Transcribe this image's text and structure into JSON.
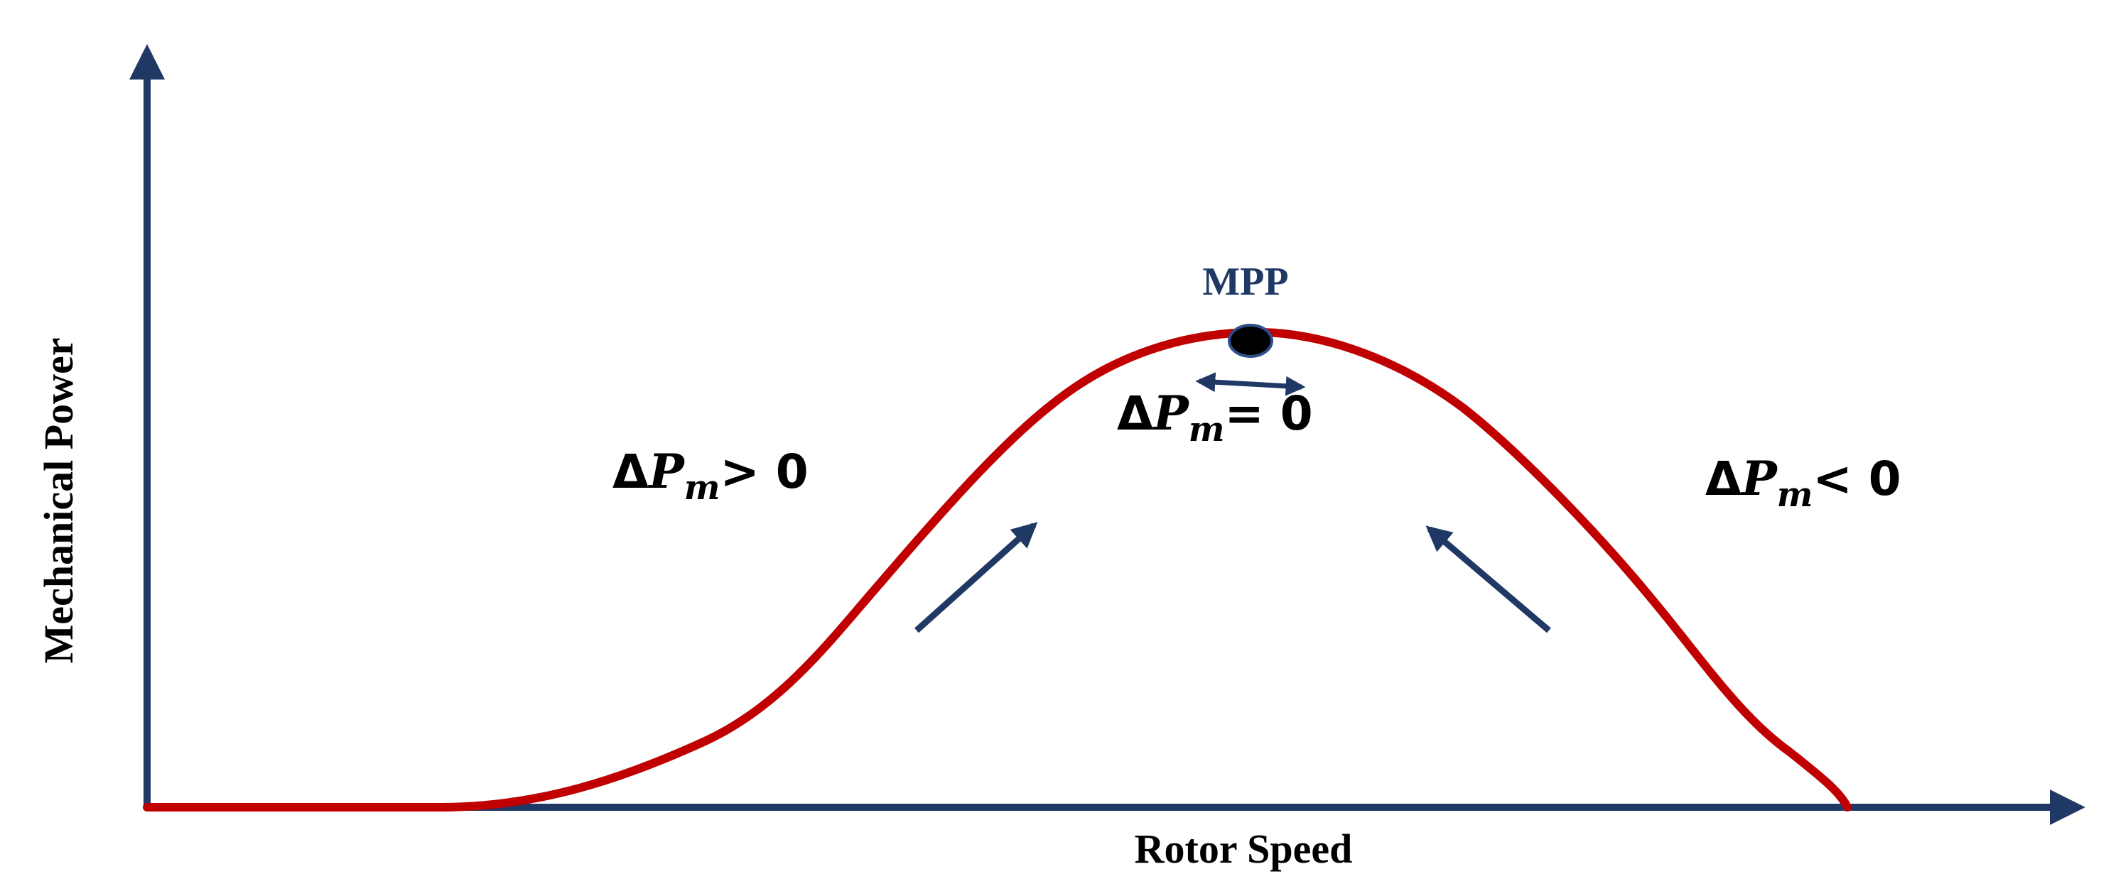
{
  "diagram": {
    "x_axis_label": "Rotor Speed",
    "y_axis_label": "Mechanical Power",
    "peak_label": "MPP",
    "regions": {
      "left": {
        "delta": "Δ",
        "symbol": "P",
        "subscript": "m",
        "relation": "> 0"
      },
      "peak": {
        "delta": "Δ",
        "symbol": "P",
        "subscript": "m",
        "relation": "= 0"
      },
      "right": {
        "delta": "Δ",
        "symbol": "P",
        "subscript": "m",
        "relation": "< 0"
      }
    },
    "colors": {
      "axis": "#1f3864",
      "curve": "#c00000",
      "arrow": "#1f3864",
      "mpp_point": "#000000",
      "mpp_outline": "#2e4f8c"
    }
  }
}
